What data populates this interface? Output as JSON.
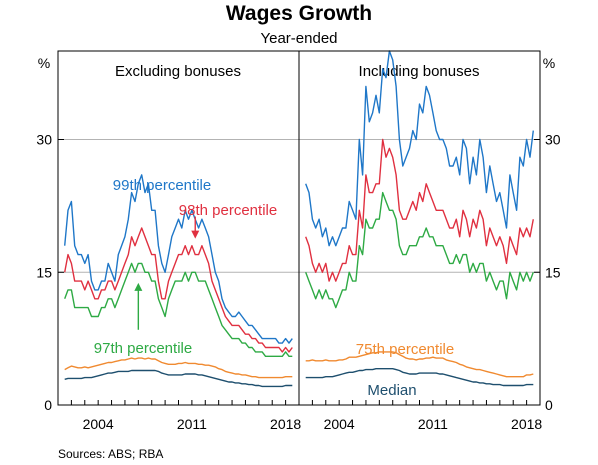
{
  "chart_data": {
    "type": "line",
    "title": "Wages Growth",
    "subtitle": "Year-ended",
    "source": "Sources:  ABS; RBA",
    "y_unit": "%",
    "ylim": [
      0,
      40
    ],
    "yticks": [
      0,
      15,
      30
    ],
    "grid": true,
    "xlim": [
      2001.0,
      2019.0
    ],
    "xticks": [
      2004,
      2011,
      2018
    ],
    "x_quarters": [
      2001.5,
      2001.75,
      2002.0,
      2002.25,
      2002.5,
      2002.75,
      2003.0,
      2003.25,
      2003.5,
      2003.75,
      2004.0,
      2004.25,
      2004.5,
      2004.75,
      2005.0,
      2005.25,
      2005.5,
      2005.75,
      2006.0,
      2006.25,
      2006.5,
      2006.75,
      2007.0,
      2007.25,
      2007.5,
      2007.75,
      2008.0,
      2008.25,
      2008.5,
      2008.75,
      2009.0,
      2009.25,
      2009.5,
      2009.75,
      2010.0,
      2010.25,
      2010.5,
      2010.75,
      2011.0,
      2011.25,
      2011.5,
      2011.75,
      2012.0,
      2012.25,
      2012.5,
      2012.75,
      2013.0,
      2013.25,
      2013.5,
      2013.75,
      2014.0,
      2014.25,
      2014.5,
      2014.75,
      2015.0,
      2015.25,
      2015.5,
      2015.75,
      2016.0,
      2016.25,
      2016.5,
      2016.75,
      2017.0,
      2017.25,
      2017.5,
      2017.75,
      2018.0,
      2018.25,
      2018.5
    ],
    "panels": [
      {
        "title": "Excluding bonuses",
        "series": [
          {
            "name": "99th percentile",
            "color": "#1f77c8",
            "values": [
              18,
              22,
              23,
              18,
              17,
              17,
              16,
              17,
              14,
              13,
              13,
              14,
              14,
              16,
              15,
              14,
              17,
              18,
              19,
              21,
              24,
              23,
              25,
              26,
              24,
              25,
              22,
              22,
              18,
              16,
              15,
              17,
              19,
              20,
              21,
              20,
              22,
              21,
              22,
              21,
              20,
              21,
              20,
              19,
              17,
              15,
              14,
              12,
              11,
              10.5,
              10,
              10,
              10.5,
              10,
              9.5,
              9,
              9,
              8.5,
              8,
              7.5,
              7.5,
              7.5,
              7.5,
              7.5,
              7,
              7,
              7.5,
              7,
              7.5
            ]
          },
          {
            "name": "98th percentile",
            "color": "#e03040",
            "values": [
              15,
              17,
              16,
              14,
              14,
              14,
              13,
              14,
              13,
              12,
              12,
              13,
              13,
              14,
              14,
              13,
              14,
              15,
              16,
              17,
              19,
              18,
              19,
              20,
              19,
              18,
              17,
              17,
              14,
              12,
              12,
              14,
              15,
              16,
              17,
              17,
              18,
              17,
              18,
              17,
              17,
              18,
              17,
              16,
              14,
              13,
              12,
              11,
              10,
              9.5,
              9,
              9,
              9,
              8.5,
              8,
              8,
              7.5,
              7.5,
              7,
              7,
              6.5,
              6.5,
              6.5,
              6.5,
              6.5,
              6,
              6.5,
              6,
              6.5
            ]
          },
          {
            "name": "97th percentile",
            "color": "#2eaa44",
            "values": [
              12,
              13,
              13,
              11,
              11,
              11,
              11,
              11,
              10,
              10,
              10,
              11,
              11,
              12,
              12,
              11,
              12,
              13,
              14,
              15,
              16,
              15,
              16,
              16,
              15,
              15,
              14,
              14,
              12,
              11,
              10,
              12,
              13,
              14,
              14,
              14,
              15,
              14,
              15,
              15,
              14,
              14,
              14,
              13,
              12,
              11,
              10,
              9,
              8.5,
              8,
              7.5,
              7.5,
              7.5,
              7,
              7,
              6.5,
              6.5,
              6,
              6,
              6,
              5.5,
              5.5,
              5.5,
              5.5,
              5.5,
              5.5,
              6,
              5.5,
              5.5
            ]
          },
          {
            "name": "75th percentile",
            "color": "#f08a30",
            "values": [
              4.0,
              4.2,
              4.4,
              4.3,
              4.2,
              4.2,
              4.3,
              4.2,
              4.3,
              4.4,
              4.5,
              4.6,
              4.7,
              4.8,
              4.8,
              4.9,
              5.0,
              5.1,
              5.1,
              5.2,
              5.3,
              5.2,
              5.3,
              5.3,
              5.2,
              5.3,
              5.2,
              5.2,
              5.0,
              4.8,
              4.7,
              4.6,
              4.6,
              4.6,
              4.7,
              4.7,
              4.8,
              4.7,
              4.7,
              4.7,
              4.6,
              4.6,
              4.5,
              4.5,
              4.4,
              4.3,
              4.1,
              4.0,
              3.8,
              3.7,
              3.6,
              3.5,
              3.5,
              3.4,
              3.4,
              3.3,
              3.2,
              3.2,
              3.1,
              3.1,
              3.1,
              3.1,
              3.1,
              3.1,
              3.1,
              3.1,
              3.2,
              3.2,
              3.2
            ]
          },
          {
            "name": "Median",
            "color": "#1e4f6e",
            "values": [
              2.9,
              3.0,
              3.0,
              3.0,
              3.0,
              3.0,
              3.1,
              3.1,
              3.1,
              3.2,
              3.3,
              3.4,
              3.5,
              3.6,
              3.6,
              3.7,
              3.8,
              3.8,
              3.8,
              3.8,
              3.9,
              3.9,
              3.9,
              3.9,
              3.9,
              3.9,
              3.9,
              3.9,
              3.8,
              3.6,
              3.5,
              3.4,
              3.4,
              3.4,
              3.4,
              3.4,
              3.5,
              3.5,
              3.5,
              3.5,
              3.4,
              3.4,
              3.3,
              3.2,
              3.1,
              3.0,
              2.9,
              2.8,
              2.7,
              2.6,
              2.6,
              2.5,
              2.5,
              2.4,
              2.4,
              2.3,
              2.3,
              2.2,
              2.2,
              2.1,
              2.1,
              2.1,
              2.1,
              2.1,
              2.1,
              2.1,
              2.2,
              2.2,
              2.2
            ]
          }
        ]
      },
      {
        "title": "Including bonuses",
        "series": [
          {
            "name": "99th percentile",
            "color": "#1f77c8",
            "values": [
              25,
              24,
              21,
              20,
              21,
              19,
              20,
              18,
              19,
              18,
              19,
              20,
              20,
              23,
              22,
              21,
              30,
              26,
              36,
              32,
              33,
              35,
              33,
              38,
              37,
              40,
              39,
              36,
              30,
              27,
              28,
              29,
              31,
              30,
              34,
              33,
              36,
              35,
              33,
              31,
              30,
              30,
              29,
              27,
              27,
              28,
              26,
              30,
              29,
              25,
              28,
              26,
              30,
              28,
              24,
              27,
              25,
              23,
              24,
              22,
              20,
              26,
              24,
              22,
              28,
              27,
              30,
              28,
              31
            ]
          },
          {
            "name": "98th percentile",
            "color": "#e03040",
            "values": [
              19,
              18,
              16,
              15,
              16,
              15,
              16,
              14,
              15,
              14,
              15,
              16,
              16,
              18,
              17,
              17,
              22,
              20,
              26,
              24,
              24,
              25,
              25,
              30,
              28,
              29,
              28,
              26,
              22,
              21,
              21,
              22,
              23,
              22,
              24,
              23,
              25,
              24,
              23,
              22,
              22,
              22,
              21,
              20,
              20,
              21,
              19,
              22,
              21,
              19,
              21,
              20,
              22,
              21,
              18,
              20,
              19,
              18,
              19,
              18,
              16,
              19,
              18,
              17,
              20,
              19,
              20,
              19,
              21
            ]
          },
          {
            "name": "97th percentile",
            "color": "#2eaa44",
            "values": [
              15,
              14,
              13,
              12,
              13,
              12,
              13,
              12,
              12,
              11,
              12,
              13,
              13,
              15,
              14,
              14,
              18,
              17,
              21,
              20,
              20,
              21,
              21,
              24,
              23,
              22,
              22,
              21,
              18,
              17,
              17,
              18,
              18,
              18,
              19,
              19,
              20,
              19,
              19,
              18,
              18,
              18,
              17,
              16,
              16,
              17,
              16,
              17,
              17,
              15,
              16,
              15,
              16,
              16,
              14,
              15,
              14,
              13,
              14,
              14,
              12,
              15,
              14,
              13,
              15,
              14,
              15,
              14,
              15
            ]
          },
          {
            "name": "75th percentile",
            "color": "#f08a30",
            "values": [
              5.0,
              5.0,
              5.1,
              5.0,
              5.0,
              5.0,
              5.1,
              5.0,
              5.0,
              5.0,
              5.1,
              5.1,
              5.2,
              5.4,
              5.4,
              5.4,
              5.5,
              5.6,
              5.7,
              5.8,
              5.9,
              5.9,
              6.0,
              6.0,
              6.0,
              6.0,
              6.0,
              5.9,
              5.7,
              5.5,
              5.3,
              5.2,
              5.2,
              5.1,
              5.2,
              5.2,
              5.3,
              5.3,
              5.4,
              5.3,
              5.3,
              5.3,
              5.1,
              5.0,
              4.9,
              4.8,
              4.6,
              4.5,
              4.3,
              4.2,
              4.1,
              4.0,
              4.0,
              3.9,
              3.8,
              3.7,
              3.6,
              3.5,
              3.4,
              3.3,
              3.2,
              3.2,
              3.2,
              3.2,
              3.2,
              3.2,
              3.4,
              3.4,
              3.5
            ]
          },
          {
            "name": "Median",
            "color": "#1e4f6e",
            "values": [
              3.1,
              3.1,
              3.1,
              3.1,
              3.1,
              3.1,
              3.2,
              3.2,
              3.2,
              3.3,
              3.4,
              3.5,
              3.6,
              3.7,
              3.7,
              3.8,
              3.9,
              3.9,
              4.0,
              4.0,
              4.0,
              4.1,
              4.1,
              4.1,
              4.1,
              4.1,
              4.1,
              4.0,
              3.9,
              3.7,
              3.6,
              3.5,
              3.5,
              3.5,
              3.6,
              3.6,
              3.6,
              3.6,
              3.6,
              3.6,
              3.5,
              3.5,
              3.4,
              3.3,
              3.2,
              3.1,
              3.0,
              2.9,
              2.8,
              2.7,
              2.6,
              2.6,
              2.5,
              2.5,
              2.4,
              2.4,
              2.3,
              2.3,
              2.3,
              2.2,
              2.2,
              2.2,
              2.2,
              2.2,
              2.2,
              2.2,
              2.3,
              2.3,
              2.3
            ]
          }
        ]
      }
    ],
    "annotations": [
      {
        "text": "99th percentile",
        "panel": 0,
        "series": 0
      },
      {
        "text": "98th percentile",
        "panel": 0,
        "series": 1,
        "arrow_to": [
          2011.25,
          18.8
        ],
        "arrow_from": [
          2011.25,
          21.3
        ]
      },
      {
        "text": "97th percentile",
        "panel": 0,
        "series": 2,
        "arrow_to": [
          2007.0,
          13.8
        ],
        "arrow_from": [
          2007.0,
          8.5
        ]
      },
      {
        "text": "75th percentile",
        "panel": 1,
        "series": 3
      },
      {
        "text": "Median",
        "panel": 1,
        "series": 4
      }
    ]
  }
}
